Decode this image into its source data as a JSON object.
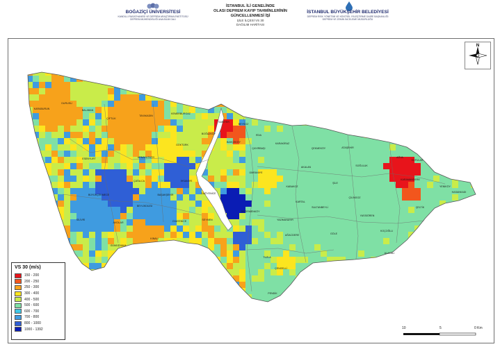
{
  "header": {
    "left": {
      "name": "BOĞAZİÇİ ÜNİVERSİTESİ",
      "line1": "KANDİLLİ RASATHANESİ VE DEPREM ARAŞTIRMA ENSTİTÜSÜ",
      "line2": "DEPREM MÜHENDİSLİĞİ ANA BİLİM DALI"
    },
    "center": {
      "line1": "İSTANBUL İLİ GENELİNDE",
      "line2": "OLASI DEPREM KAYIP TAHMİNLERİNİN",
      "line3": "GÜNCELLENMESİ İŞİ",
      "line4": "ŞİLE İLÇESİ VS 30",
      "line5": "DAĞILIM HARİTASI"
    },
    "right": {
      "name": "İSTANBUL BÜYÜKŞEHİR BELEDİYESİ",
      "line1": "DEPREM RİSK YÖNETİMİ VE KENTSEL İYİLEŞTİRME DAİRE BAŞKANLIĞI",
      "line2": "DEPREM VE ZEMİN İNCELEME MÜDÜRLÜĞÜ"
    }
  },
  "legend": {
    "title": "VS 30 (m/s)",
    "classes": [
      {
        "label": "150 - 200",
        "color": "#e8141b"
      },
      {
        "label": "200 - 250",
        "color": "#f2561d"
      },
      {
        "label": "250 - 300",
        "color": "#f7a21b"
      },
      {
        "label": "300 - 400",
        "color": "#fce51f"
      },
      {
        "label": "400 - 500",
        "color": "#c9ec4a"
      },
      {
        "label": "500 - 600",
        "color": "#7fe0a5"
      },
      {
        "label": "600 - 700",
        "color": "#3fc7e6"
      },
      {
        "label": "700 - 800",
        "color": "#3f9be0"
      },
      {
        "label": "800 - 1000",
        "color": "#2f5fd6"
      },
      {
        "label": "1000 - 1392",
        "color": "#0a1cb4"
      }
    ]
  },
  "north": {
    "label": "N"
  },
  "scale": {
    "t0": "10",
    "t1": "5",
    "t2": "0",
    "unit": "0 Km"
  },
  "map": {
    "sea_color": "#ffffff",
    "district_labels": [
      "KARABURUN",
      "DURUSU",
      "BALABAN",
      "ÇİFTLİK",
      "TAYAKADIN",
      "KEMERBURGAZ",
      "SARIYER",
      "BOĞAZKÖY",
      "BAHÇEKÖY",
      "GÖKTÜRK",
      "ARNAVUTKÖY",
      "BEYKOZ",
      "RİVA",
      "ÇAYIRBAŞI",
      "KARAKİRAZ",
      "ŞİLE",
      "AĞVA",
      "SOFULAR",
      "KABAKOZ",
      "YAZIMANAYIR",
      "ÇENGELLİ",
      "SOĞULUK",
      "ÜMRANİYE",
      "KARTAL",
      "SULTANBEYLİ",
      "ÇEKMEKÖY",
      "ATAŞEHİR",
      "TUZLA",
      "PENDİK",
      "AĞACDERE",
      "ESENYURT",
      "BÜYÜKÇEKMECE",
      "AVCILAR",
      "BEYLİKDÜZÜ",
      "BAŞAKŞEHİR",
      "SİLİVRİ",
      "GÜMÜŞYAKA",
      "KINALI",
      "ÇATALCA",
      "İHSANİYE",
      "DAĞYENİCE",
      "AKALAN",
      "ÇİLİNGOZ",
      "YASSIÖREN",
      "KOÇOĞLU",
      "ÇELTİK",
      "YENİKÖY",
      "HASANKADI",
      "GÖLE",
      "ALACALI",
      "KARAMANDERE",
      "OVAYENİCE",
      "SEYMEN",
      "DEĞİRMENKÖY"
    ]
  }
}
